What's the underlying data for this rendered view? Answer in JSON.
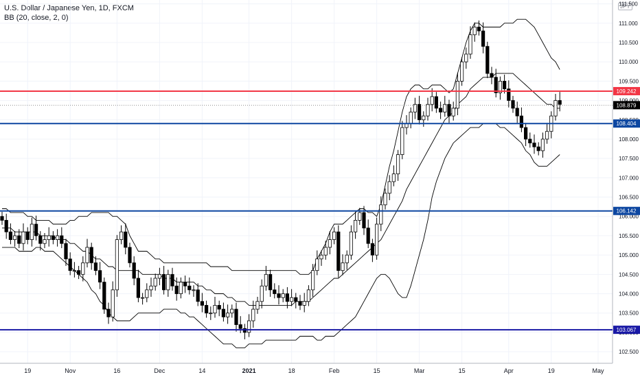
{
  "header": {
    "title": "U.S. Dollar / Japanese Yen, 1D, FXCM",
    "indicator": "BB (20, close, 2, 0)",
    "currency_badge": "JPY"
  },
  "colors": {
    "up_candle": "#ffffff",
    "down_candle": "#000000",
    "candle_outline": "#000000",
    "bands": "#000000",
    "red_line": "#f23645",
    "blue_line": "#0d47a1",
    "dark_line": "#1a1aa6",
    "axis_text": "#131722",
    "grid": "#f0f3fa"
  },
  "chart_data": {
    "type": "candlestick",
    "title": "U.S. Dollar / Japanese Yen, 1D, FXCM",
    "ylim": [
      102.2,
      111.6
    ],
    "y_ticks": [
      "102.500",
      "103.000",
      "103.500",
      "104.000",
      "104.500",
      "105.000",
      "105.500",
      "106.000",
      "106.500",
      "107.000",
      "107.500",
      "108.000",
      "108.500",
      "109.000",
      "109.500",
      "110.000",
      "110.500",
      "111.000",
      "111.500"
    ],
    "x_ticks": [
      "19",
      "Nov",
      "16",
      "Dec",
      "14",
      "2021",
      "18",
      "Feb",
      "15",
      "Mar",
      "15",
      "Apr",
      "19",
      "May"
    ],
    "x_tick_index": [
      6,
      16,
      27,
      37,
      47,
      58,
      68,
      78,
      88,
      98,
      108,
      119,
      129,
      140
    ],
    "current_price": "108.879",
    "levels": [
      {
        "value": 109.242,
        "label": "109.242",
        "color": "#f23645"
      },
      {
        "value": 108.404,
        "label": "108.404",
        "color": "#0d47a1"
      },
      {
        "value": 106.142,
        "label": "106.142",
        "color": "#0d47a1"
      },
      {
        "value": 103.067,
        "label": "103.067",
        "color": "#1a1aa6"
      }
    ],
    "closes": [
      105.9,
      105.6,
      105.4,
      105.5,
      105.3,
      105.6,
      105.4,
      105.8,
      105.5,
      105.3,
      105.4,
      105.5,
      105.4,
      105.5,
      105.3,
      104.9,
      104.6,
      104.6,
      104.5,
      104.8,
      105.2,
      104.8,
      104.6,
      104.3,
      103.6,
      103.4,
      104.1,
      105.4,
      105.6,
      105.2,
      104.8,
      104.4,
      103.9,
      103.9,
      104.1,
      104.2,
      104.4,
      104.5,
      104.1,
      104.5,
      104.2,
      104.0,
      104.3,
      104.2,
      104.1,
      104.1,
      103.8,
      103.7,
      103.5,
      103.5,
      103.7,
      103.6,
      103.4,
      103.5,
      103.6,
      103.2,
      103.1,
      103.0,
      103.3,
      103.6,
      103.8,
      104.2,
      104.5,
      104.1,
      104.0,
      103.9,
      104.0,
      103.8,
      103.9,
      103.8,
      103.7,
      103.8,
      104.1,
      104.6,
      104.9,
      105.0,
      105.2,
      105.4,
      105.6,
      104.6,
      104.8,
      105.0,
      105.6,
      105.9,
      106.1,
      105.7,
      105.3,
      105.0,
      105.8,
      106.3,
      106.6,
      106.9,
      107.1,
      107.6,
      108.3,
      108.4,
      108.7,
      108.9,
      108.5,
      108.6,
      108.9,
      109.1,
      108.8,
      108.7,
      108.9,
      108.6,
      108.8,
      109.5,
      110.0,
      110.2,
      110.7,
      110.9,
      110.8,
      110.4,
      109.7,
      109.6,
      109.2,
      109.5,
      109.3,
      109.0,
      108.8,
      108.6,
      108.3,
      108.0,
      107.9,
      107.8,
      107.7,
      108.0,
      108.2,
      108.6,
      109.0,
      108.9
    ],
    "bb_upper": [
      106.2,
      106.2,
      106.1,
      106.1,
      106.1,
      106.1,
      106.0,
      106.0,
      105.9,
      105.9,
      105.9,
      105.9,
      105.8,
      105.8,
      105.8,
      105.8,
      105.9,
      105.9,
      106.0,
      106.0,
      106.0,
      106.1,
      106.1,
      106.1,
      106.1,
      106.1,
      106.0,
      106.0,
      105.9,
      105.8,
      105.5,
      105.3,
      105.1,
      105.1,
      105.1,
      105.0,
      104.9,
      104.9,
      104.8,
      104.8,
      104.8,
      104.8,
      104.8,
      104.8,
      104.8,
      104.8,
      104.8,
      104.8,
      104.8,
      104.7,
      104.7,
      104.7,
      104.7,
      104.7,
      104.6,
      104.6,
      104.6,
      104.6,
      104.6,
      104.6,
      104.6,
      104.6,
      104.6,
      104.6,
      104.6,
      104.6,
      104.6,
      104.6,
      104.6,
      104.6,
      104.5,
      104.5,
      104.5,
      104.6,
      104.9,
      105.1,
      105.3,
      105.6,
      105.8,
      105.8,
      105.8,
      105.9,
      106.0,
      106.1,
      106.2,
      106.2,
      106.1,
      106.1,
      106.0,
      106.3,
      106.8,
      107.3,
      107.7,
      108.2,
      108.7,
      109.1,
      109.3,
      109.4,
      109.4,
      109.3,
      109.3,
      109.4,
      109.4,
      109.4,
      109.3,
      109.2,
      109.3,
      109.7,
      110.1,
      110.5,
      110.8,
      111.0,
      111.0,
      110.9,
      110.9,
      110.9,
      110.9,
      110.9,
      111.0,
      111.0,
      111.0,
      111.1,
      111.1,
      111.1,
      111.0,
      110.9,
      110.7,
      110.5,
      110.3,
      110.1,
      110.0,
      109.8
    ],
    "bb_basis": [
      105.7,
      105.7,
      105.7,
      105.6,
      105.6,
      105.6,
      105.6,
      105.6,
      105.6,
      105.5,
      105.5,
      105.5,
      105.5,
      105.4,
      105.4,
      105.4,
      105.3,
      105.3,
      105.2,
      105.1,
      105.1,
      105.0,
      104.9,
      104.9,
      104.8,
      104.7,
      104.7,
      104.6,
      104.6,
      104.6,
      104.6,
      104.6,
      104.6,
      104.5,
      104.5,
      104.5,
      104.5,
      104.5,
      104.4,
      104.4,
      104.4,
      104.3,
      104.3,
      104.3,
      104.3,
      104.3,
      104.2,
      104.2,
      104.1,
      104.1,
      104.0,
      104.0,
      104.0,
      103.9,
      103.9,
      103.8,
      103.8,
      103.8,
      103.7,
      103.7,
      103.7,
      103.7,
      103.7,
      103.7,
      103.7,
      103.7,
      103.7,
      103.7,
      103.7,
      103.8,
      103.8,
      103.8,
      103.8,
      103.9,
      104.0,
      104.1,
      104.2,
      104.3,
      104.4,
      104.4,
      104.5,
      104.6,
      104.7,
      104.8,
      104.9,
      105.0,
      105.1,
      105.2,
      105.3,
      105.4,
      105.6,
      105.8,
      106.0,
      106.2,
      106.4,
      106.7,
      106.9,
      107.1,
      107.3,
      107.5,
      107.7,
      107.9,
      108.1,
      108.3,
      108.5,
      108.6,
      108.7,
      108.9,
      109.0,
      109.1,
      109.3,
      109.4,
      109.5,
      109.6,
      109.6,
      109.6,
      109.7,
      109.7,
      109.7,
      109.7,
      109.7,
      109.6,
      109.5,
      109.4,
      109.3,
      109.2,
      109.1,
      109.0,
      108.9,
      108.9,
      108.8,
      108.8
    ],
    "bb_lower": [
      105.2,
      105.2,
      105.2,
      105.2,
      105.1,
      105.1,
      105.1,
      105.1,
      105.2,
      105.2,
      105.1,
      105.1,
      105.1,
      105.0,
      104.9,
      104.8,
      104.7,
      104.6,
      104.5,
      104.4,
      104.3,
      104.1,
      104.0,
      103.8,
      103.7,
      103.5,
      103.4,
      103.3,
      103.3,
      103.3,
      103.3,
      103.4,
      103.5,
      103.5,
      103.5,
      103.5,
      103.5,
      103.5,
      103.6,
      103.6,
      103.6,
      103.6,
      103.5,
      103.5,
      103.4,
      103.4,
      103.3,
      103.2,
      103.1,
      103.0,
      102.9,
      102.8,
      102.7,
      102.7,
      102.7,
      102.6,
      102.6,
      102.6,
      102.7,
      102.7,
      102.7,
      102.7,
      102.8,
      102.8,
      102.8,
      102.8,
      102.8,
      102.8,
      102.8,
      102.8,
      102.9,
      102.9,
      102.9,
      102.9,
      102.8,
      102.8,
      102.9,
      102.9,
      102.9,
      103.0,
      103.1,
      103.2,
      103.3,
      103.4,
      103.6,
      103.8,
      104.0,
      104.2,
      104.4,
      104.5,
      104.5,
      104.4,
      104.2,
      104.0,
      103.9,
      103.9,
      104.2,
      104.6,
      105.0,
      105.4,
      105.9,
      106.5,
      106.9,
      107.2,
      107.5,
      107.7,
      107.9,
      108.0,
      108.1,
      108.2,
      108.3,
      108.3,
      108.3,
      108.4,
      108.4,
      108.4,
      108.4,
      108.3,
      108.3,
      108.2,
      108.1,
      108.0,
      107.9,
      107.7,
      107.6,
      107.4,
      107.3,
      107.3,
      107.3,
      107.4,
      107.5,
      107.6
    ]
  }
}
